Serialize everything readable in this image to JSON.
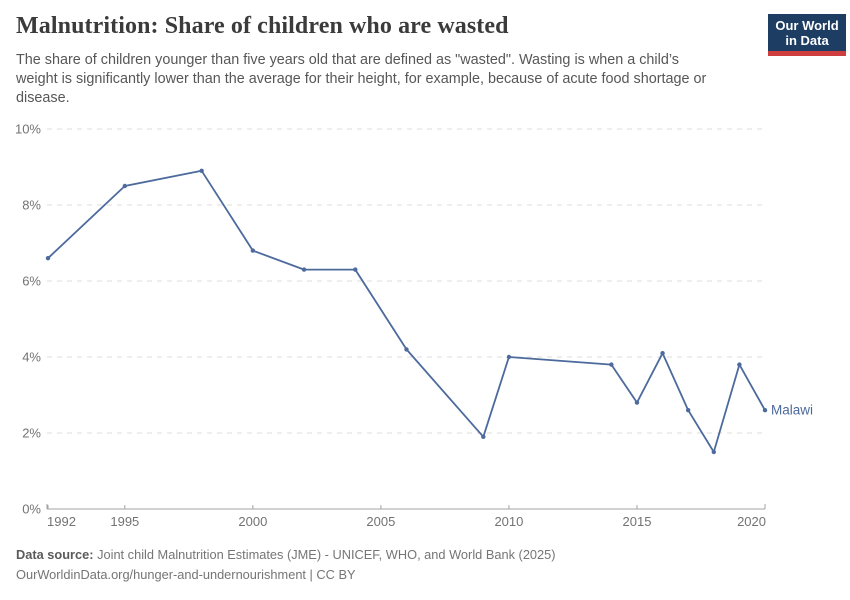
{
  "header": {
    "title": "Malnutrition: Share of children who are wasted",
    "subtitle_lines": [
      "The share of children younger than five years old that are defined as \"wasted\". Wasting is when a child’s",
      "weight is significantly lower than the average for their height, for example, because of acute food shortage or",
      "disease."
    ]
  },
  "logo": {
    "line1": "Our World",
    "line2": "in Data",
    "bg_color": "#1d3d63",
    "bar_color": "#cf3e3e"
  },
  "chart_data": {
    "type": "line",
    "title": "Malnutrition: Share of children who are wasted",
    "xlabel": "",
    "ylabel": "",
    "xlim": [
      1992,
      2020
    ],
    "ylim": [
      0,
      10
    ],
    "x_ticks": [
      1992,
      1995,
      2000,
      2005,
      2010,
      2015,
      2020
    ],
    "y_ticks": [
      0,
      2,
      4,
      6,
      8,
      10
    ],
    "y_tick_suffix": "%",
    "grid": "dashed",
    "legend_position": "end-of-line-label",
    "colors": {
      "line": "#4c6a9c",
      "axis": "#a3a3a3",
      "grid": "#dcdcdc",
      "tick_label": "#737373"
    },
    "series": [
      {
        "name": "Malawi",
        "points": [
          [
            1992,
            6.6
          ],
          [
            1995,
            8.5
          ],
          [
            1998,
            8.9
          ],
          [
            2000,
            6.8
          ],
          [
            2002,
            6.3
          ],
          [
            2004,
            6.3
          ],
          [
            2006,
            4.2
          ],
          [
            2009,
            1.9
          ],
          [
            2010,
            4.0
          ],
          [
            2014,
            3.8
          ],
          [
            2015,
            2.8
          ],
          [
            2016,
            4.1
          ],
          [
            2017,
            2.6
          ],
          [
            2018,
            1.5
          ],
          [
            2019,
            3.8
          ],
          [
            2020,
            2.6
          ]
        ]
      }
    ]
  },
  "footer": {
    "source_label": "Data source:",
    "source_text": " Joint child Malnutrition Estimates (JME) - UNICEF, WHO, and World Bank (2025)",
    "line2": "OurWorldinData.org/hunger-and-undernourishment | CC BY"
  }
}
